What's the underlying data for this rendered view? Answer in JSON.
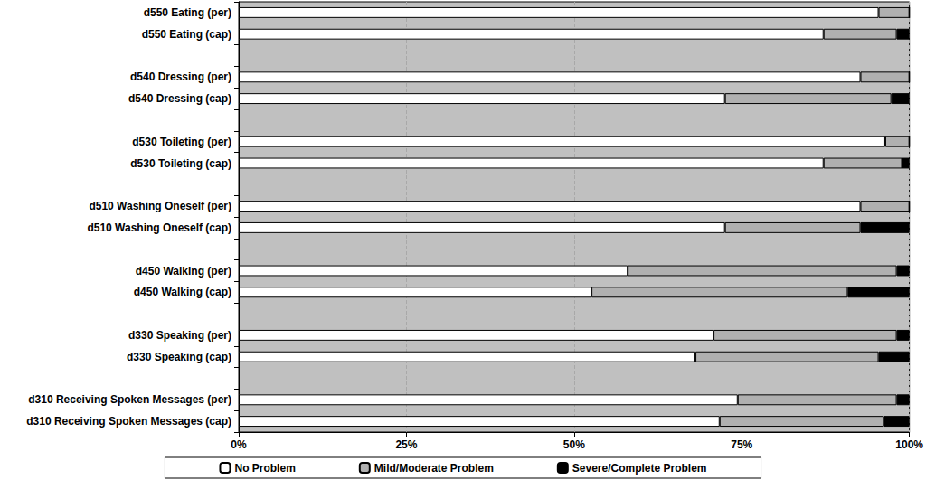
{
  "chart_data": {
    "type": "bar",
    "orientation": "horizontal",
    "stacked": true,
    "grid": true,
    "legend": "bottom",
    "categories": [
      "d550 Eating (per)",
      "d550 Eating (cap)",
      null,
      "d540 Dressing (per)",
      "d540 Dressing (cap)",
      null,
      "d530 Toileting (per)",
      "d530 Toileting (cap)",
      null,
      "d510 Washing Oneself (per)",
      "d510 Washing Oneself (cap)",
      null,
      "d450 Walking (per)",
      "d450 Walking (cap)",
      null,
      "d330 Speaking (per)",
      "d330 Speaking (cap)",
      null,
      "d310 Receiving Spoken Messages (per)",
      "d310 Receiving Spoken Messages (cap)"
    ],
    "series": [
      {
        "name": "No Problem",
        "color": "#ffffff",
        "values": [
          95.4,
          87.2,
          null,
          92.7,
          72.5,
          null,
          96.4,
          87.2,
          null,
          92.7,
          72.5,
          null,
          58.0,
          52.6,
          null,
          70.8,
          68.1,
          null,
          74.4,
          71.7
        ]
      },
      {
        "name": "Mild/Moderate Problem",
        "color": "#b0b0b0",
        "values": [
          4.6,
          10.9,
          null,
          7.3,
          24.8,
          null,
          3.6,
          11.7,
          null,
          7.3,
          20.2,
          null,
          40.1,
          38.2,
          null,
          27.3,
          27.3,
          null,
          23.7,
          24.5
        ]
      },
      {
        "name": "Severe/Complete Problem",
        "color": "#000000",
        "values": [
          0,
          1.9,
          null,
          0,
          2.7,
          null,
          0,
          1.1,
          null,
          0,
          7.3,
          null,
          1.9,
          9.2,
          null,
          1.9,
          4.6,
          null,
          1.9,
          3.8
        ]
      }
    ],
    "xlim": [
      0,
      100
    ],
    "xticks": [
      {
        "value": 0,
        "label": "0%"
      },
      {
        "value": 25,
        "label": "25%"
      },
      {
        "value": 50,
        "label": "50%"
      },
      {
        "value": 75,
        "label": "75%"
      },
      {
        "value": 100,
        "label": "100%"
      }
    ]
  }
}
